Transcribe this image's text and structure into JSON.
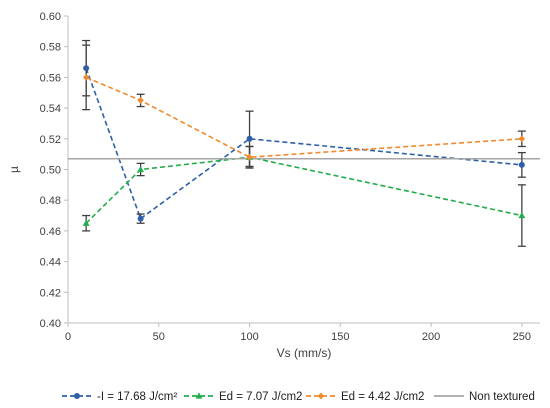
{
  "chart_data": {
    "type": "line",
    "xlabel": "Vs (mm/s)",
    "ylabel": "µ",
    "xlim": [
      0,
      260
    ],
    "ylim": [
      0.4,
      0.6
    ],
    "x_ticks": [
      0,
      50,
      100,
      150,
      200,
      250
    ],
    "y_ticks": [
      0.4,
      0.42,
      0.44,
      0.46,
      0.48,
      0.5,
      0.52,
      0.54,
      0.56,
      0.58,
      0.6
    ],
    "grid": false,
    "legend_position": "bottom",
    "series": [
      {
        "name": "-I = 17.68 J/cm²",
        "color": "#2E5FA8",
        "marker": "circle",
        "line_style": "dashed",
        "x": [
          10,
          40,
          100,
          250
        ],
        "y": [
          0.566,
          0.468,
          0.52,
          0.503
        ],
        "error": [
          0.018,
          0.003,
          0.018,
          0.008
        ]
      },
      {
        "name": "Ed = 7.07 J/cm2",
        "color": "#21AD4B",
        "marker": "triangle",
        "line_style": "dashed",
        "x": [
          10,
          40,
          100,
          250
        ],
        "y": [
          0.465,
          0.5,
          0.508,
          0.47
        ],
        "error": [
          0.005,
          0.004,
          0.007,
          0.02
        ]
      },
      {
        "name": "Ed = 4.42 J/cm2",
        "color": "#F08A2C",
        "marker": "diamond",
        "line_style": "dashed",
        "x": [
          10,
          40,
          100,
          250
        ],
        "y": [
          0.56,
          0.545,
          0.508,
          0.52
        ],
        "error": [
          0.021,
          0.004,
          0.007,
          0.005
        ]
      },
      {
        "name": "Non textured",
        "color": "#A6A6A6",
        "marker": "none",
        "line_style": "solid",
        "x": [
          0,
          260
        ],
        "y": [
          0.507,
          0.507
        ],
        "error": []
      }
    ]
  }
}
